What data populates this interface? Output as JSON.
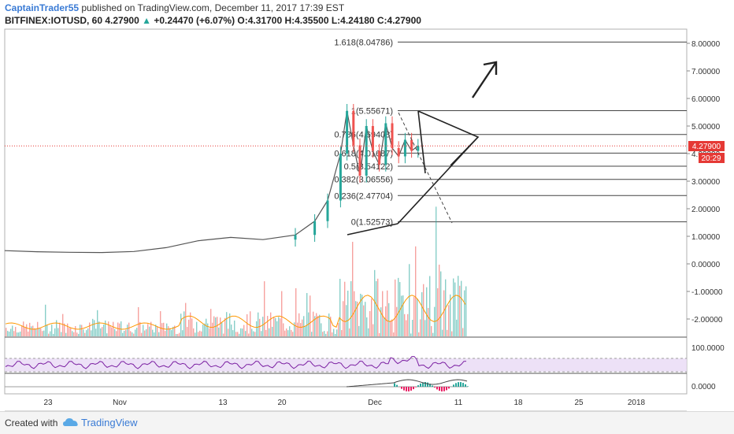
{
  "header": {
    "author": "CaptainTrader55",
    "published": " published on TradingView.com, December 11, 2017 17:39 EST",
    "symbol": "BITFINEX:IOTUSD, 60",
    "last": "4.27900",
    "change_arrow": "▲",
    "change": "+0.24470 (+6.07%)",
    "ohlc": "O:4.31700 H:4.35500 L:4.24180 C:4.27900"
  },
  "price_tag": {
    "value": "4.27900",
    "countdown": "20:29",
    "color": "#e53935"
  },
  "footer": {
    "created_with": "Created with",
    "brand": "TradingView"
  },
  "colors": {
    "up": "#26a69a",
    "down": "#ef5350",
    "rsi": "#7b1fa2",
    "rsi_band": "#e9d9f5",
    "volume_ma": "#ff9800",
    "price_line": "#e53935",
    "brand": "#3a7bd5"
  },
  "chart_data": [
    {
      "type": "line",
      "name": "price",
      "x_ticks": [
        "23",
        "Nov",
        "13",
        "20",
        "Dec",
        "11",
        "18",
        "25",
        "2018"
      ],
      "y_ticks": [
        "8.00000",
        "7.00000",
        "6.00000",
        "5.00000",
        "4.00000",
        "3.00000",
        "2.00000",
        "1.00000",
        "0.00000",
        "-1.00000",
        "-2.00000"
      ],
      "ylim": [
        -2.6,
        8.8
      ],
      "current_price": 4.279,
      "x_days": [
        0,
        5,
        10,
        15,
        20,
        25,
        30,
        35,
        40,
        45,
        48,
        50,
        52,
        53,
        54,
        55,
        56,
        57,
        58,
        59,
        60,
        61,
        62,
        63,
        64
      ],
      "close": [
        0.48,
        0.44,
        0.42,
        0.41,
        0.45,
        0.59,
        0.84,
        0.96,
        0.88,
        1.05,
        1.55,
        2.3,
        4.0,
        5.55,
        4.3,
        3.2,
        5.0,
        4.1,
        3.6,
        5.1,
        4.2,
        3.9,
        4.5,
        4.1,
        4.28
      ],
      "fib_levels": [
        {
          "ratio": "1.618",
          "value": 8.04786,
          "label": "1.618(8.04786)"
        },
        {
          "ratio": "1",
          "value": 5.55671,
          "label": "1(5.55671)"
        },
        {
          "ratio": "0.786",
          "value": 4.69408,
          "label": "0.786(4.69408)"
        },
        {
          "ratio": "0.618",
          "value": 4.01687,
          "label": "0.618(4.01687)"
        },
        {
          "ratio": "0.5",
          "value": 3.54122,
          "label": "0.5(3.54122)"
        },
        {
          "ratio": "0.382",
          "value": 3.06556,
          "label": "0.382(3.06556)"
        },
        {
          "ratio": "0.236",
          "value": 2.47704,
          "label": "0.236(2.47704)"
        },
        {
          "ratio": "0",
          "value": 1.52573,
          "label": "0(1.52573)"
        }
      ]
    },
    {
      "type": "line",
      "name": "rsi",
      "y_ticks": [
        "100.0000"
      ]
    },
    {
      "type": "line",
      "name": "macd",
      "y_ticks": [
        "0.0000"
      ]
    }
  ]
}
